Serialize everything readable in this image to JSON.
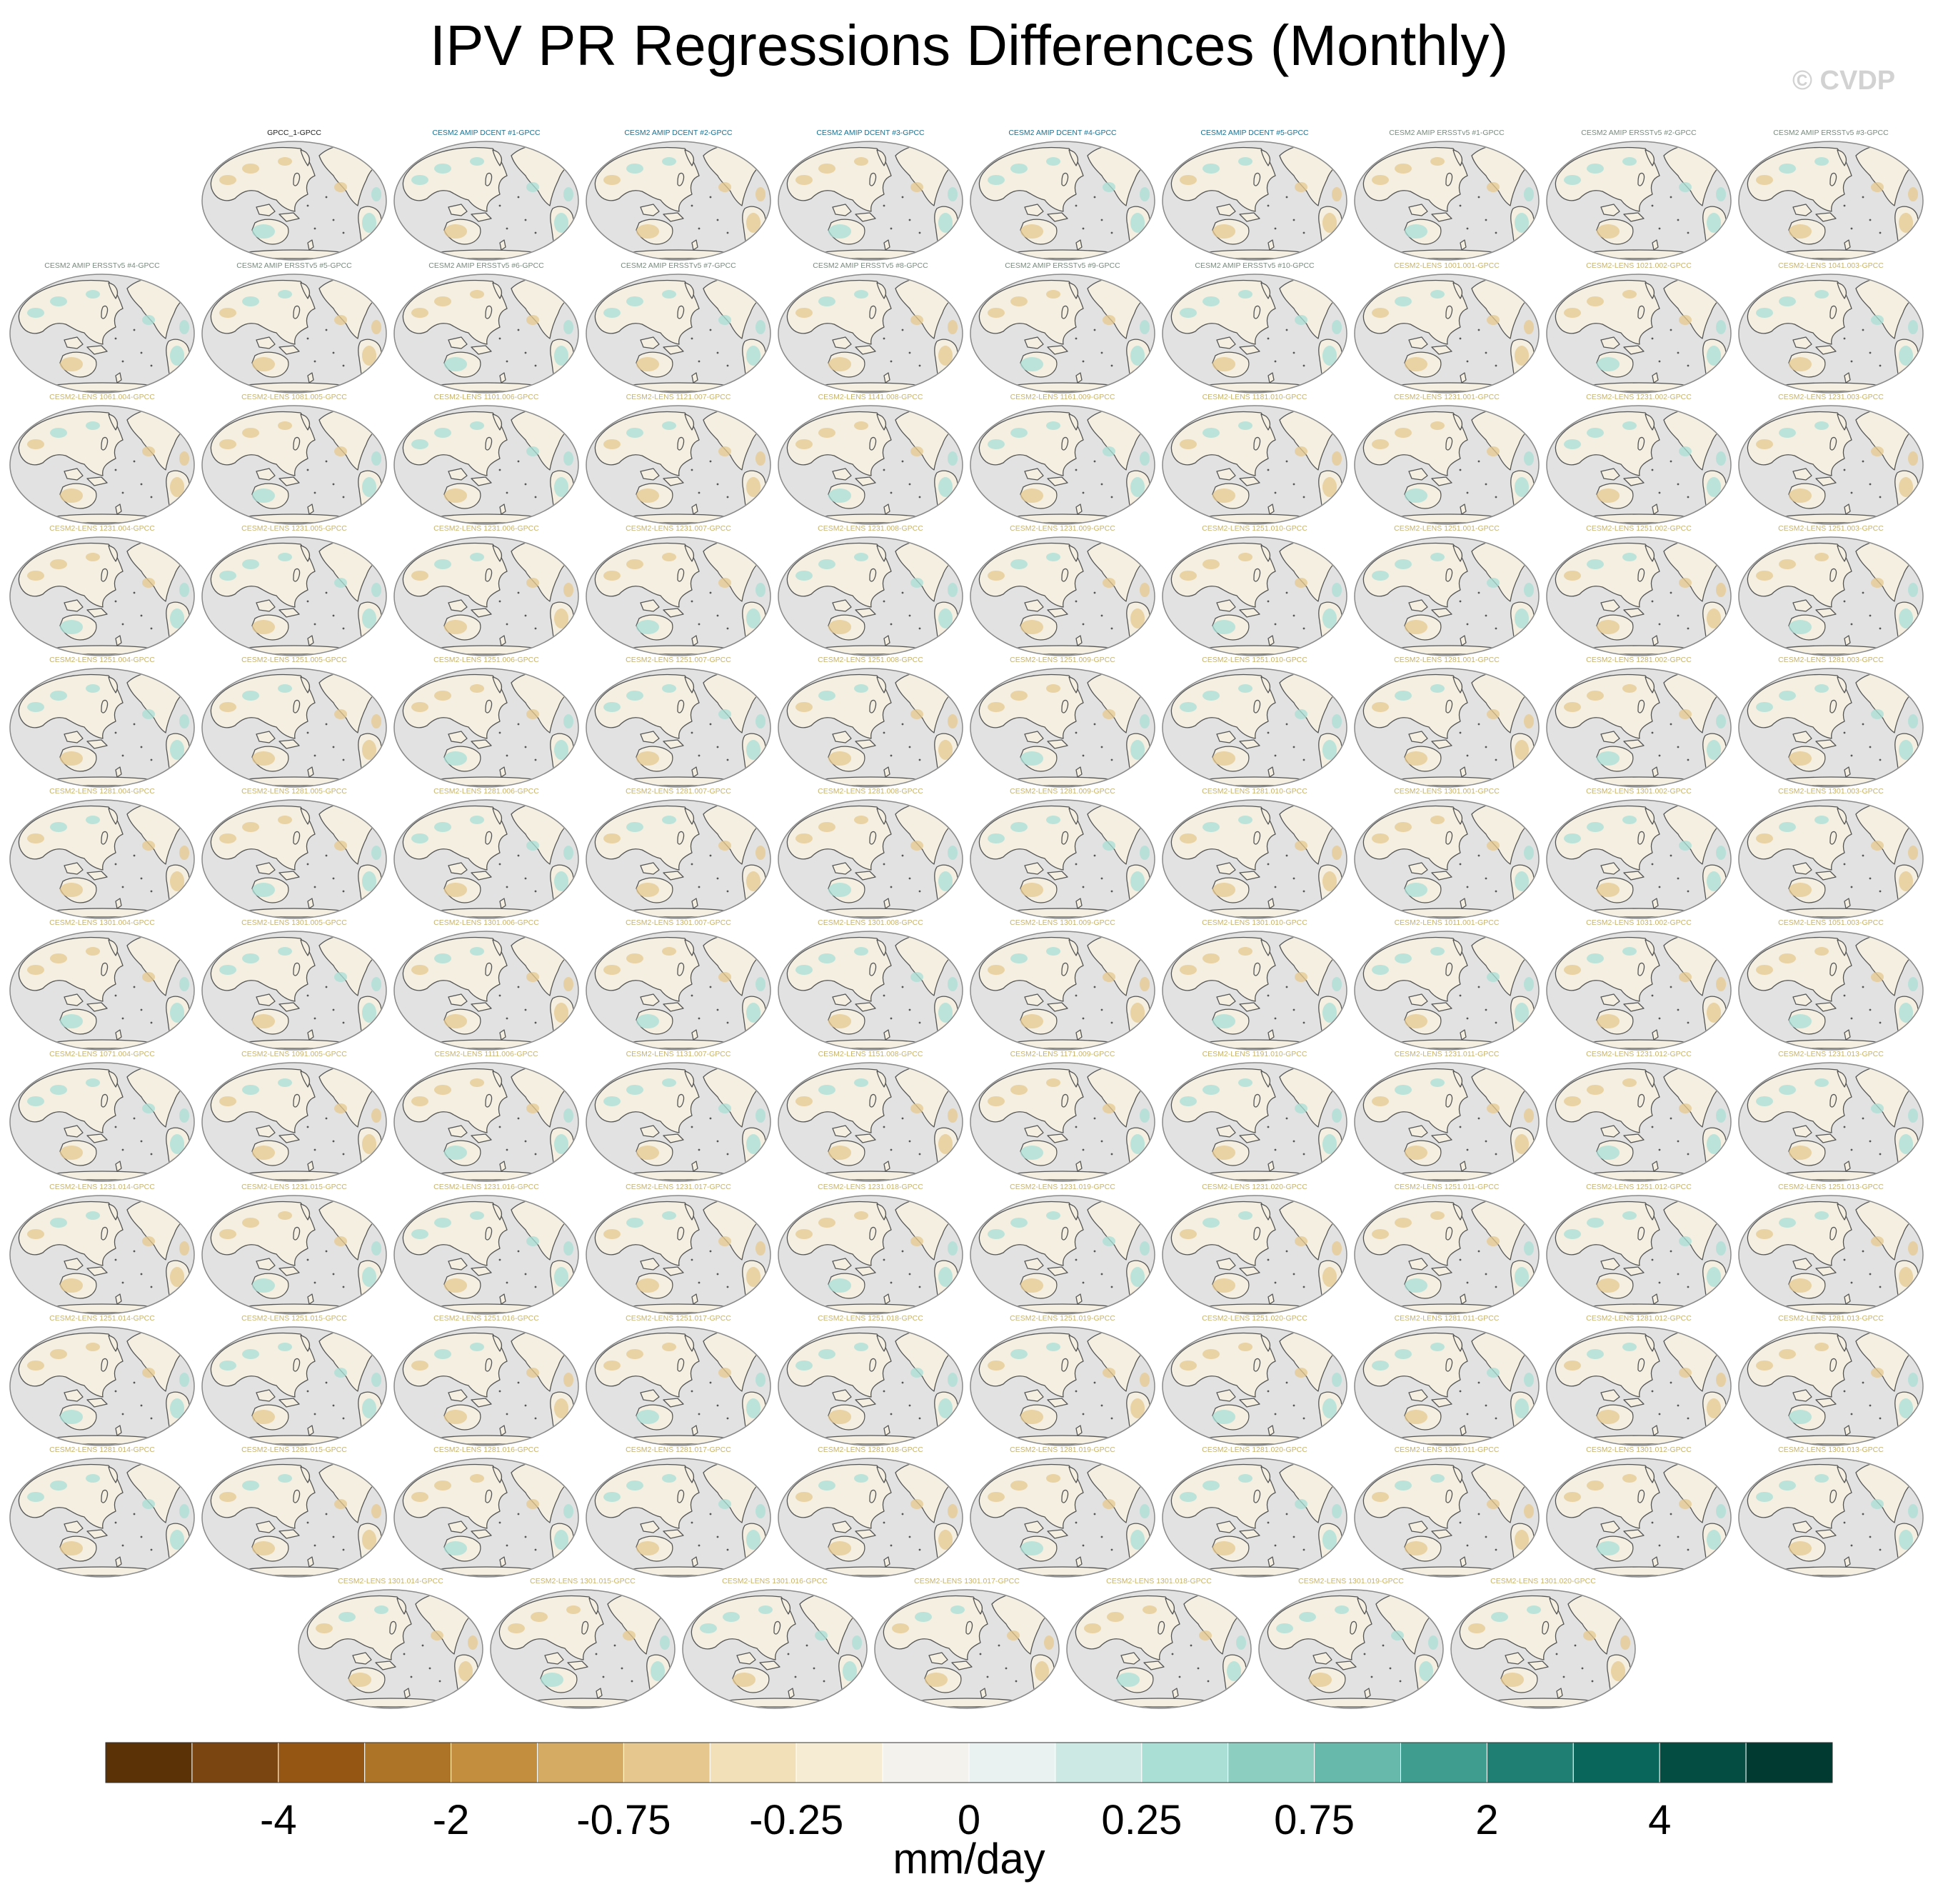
{
  "chart_data": {
    "type": "map-grid",
    "title": "IPV PR Regressions Differences (Monthly)",
    "watermark": "© CVDP",
    "colorbar": {
      "label": "mm/day",
      "tick_labels": [
        "-4",
        "-2",
        "-0.75",
        "-0.25",
        "0",
        "0.25",
        "0.75",
        "2",
        "4"
      ],
      "colors": [
        "#5a3206",
        "#7b4511",
        "#955613",
        "#ad7427",
        "#c38e3e",
        "#d5ab63",
        "#e6c88e",
        "#f2e0b8",
        "#f6ecd4",
        "#f4f2ec",
        "#eaf2f1",
        "#cde9e4",
        "#aadfd5",
        "#8ccfc1",
        "#66b9ab",
        "#3f9d8f",
        "#1f7f72",
        "#08665a",
        "#034d42",
        "#003a30"
      ]
    },
    "panel_title_colors": {
      "obs": "#222222",
      "dcent": "#1f6f8f",
      "erss": "#7a8a7f",
      "lens": "#c7b36e"
    },
    "map_colors": {
      "ocean": "#e2e2e2",
      "land": "#f4efe1",
      "coast": "#555555",
      "dry": "#e6c88e",
      "wet": "#aadfd5"
    },
    "panels": [
      [
        {
          "title": "GPCC_1-GPCC",
          "group": "obs"
        },
        {
          "title": "CESM2 AMIP DCENT #1-GPCC",
          "group": "dcent"
        },
        {
          "title": "CESM2 AMIP DCENT #2-GPCC",
          "group": "dcent"
        },
        {
          "title": "CESM2 AMIP DCENT #3-GPCC",
          "group": "dcent"
        },
        {
          "title": "CESM2 AMIP DCENT #4-GPCC",
          "group": "dcent"
        },
        {
          "title": "CESM2 AMIP DCENT #5-GPCC",
          "group": "dcent"
        },
        {
          "title": "CESM2 AMIP ERSSTv5 #1-GPCC",
          "group": "erss"
        },
        {
          "title": "CESM2 AMIP ERSSTv5 #2-GPCC",
          "group": "erss"
        },
        {
          "title": "CESM2 AMIP ERSSTv5 #3-GPCC",
          "group": "erss"
        }
      ],
      [
        {
          "title": "CESM2 AMIP ERSSTv5 #4-GPCC",
          "group": "erss"
        },
        {
          "title": "CESM2 AMIP ERSSTv5 #5-GPCC",
          "group": "erss"
        },
        {
          "title": "CESM2 AMIP ERSSTv5 #6-GPCC",
          "group": "erss"
        },
        {
          "title": "CESM2 AMIP ERSSTv5 #7-GPCC",
          "group": "erss"
        },
        {
          "title": "CESM2 AMIP ERSSTv5 #8-GPCC",
          "group": "erss"
        },
        {
          "title": "CESM2 AMIP ERSSTv5 #9-GPCC",
          "group": "erss"
        },
        {
          "title": "CESM2 AMIP ERSSTv5 #10-GPCC",
          "group": "erss"
        },
        {
          "title": "CESM2-LENS 1001.001-GPCC",
          "group": "lens"
        },
        {
          "title": "CESM2-LENS 1021.002-GPCC",
          "group": "lens"
        },
        {
          "title": "CESM2-LENS 1041.003-GPCC",
          "group": "lens"
        }
      ],
      [
        {
          "title": "CESM2-LENS 1061.004-GPCC",
          "group": "lens"
        },
        {
          "title": "CESM2-LENS 1081.005-GPCC",
          "group": "lens"
        },
        {
          "title": "CESM2-LENS 1101.006-GPCC",
          "group": "lens"
        },
        {
          "title": "CESM2-LENS 1121.007-GPCC",
          "group": "lens"
        },
        {
          "title": "CESM2-LENS 1141.008-GPCC",
          "group": "lens"
        },
        {
          "title": "CESM2-LENS 1161.009-GPCC",
          "group": "lens"
        },
        {
          "title": "CESM2-LENS 1181.010-GPCC",
          "group": "lens"
        },
        {
          "title": "CESM2-LENS 1231.001-GPCC",
          "group": "lens"
        },
        {
          "title": "CESM2-LENS 1231.002-GPCC",
          "group": "lens"
        },
        {
          "title": "CESM2-LENS 1231.003-GPCC",
          "group": "lens"
        }
      ],
      [
        {
          "title": "CESM2-LENS 1231.004-GPCC",
          "group": "lens"
        },
        {
          "title": "CESM2-LENS 1231.005-GPCC",
          "group": "lens"
        },
        {
          "title": "CESM2-LENS 1231.006-GPCC",
          "group": "lens"
        },
        {
          "title": "CESM2-LENS 1231.007-GPCC",
          "group": "lens"
        },
        {
          "title": "CESM2-LENS 1231.008-GPCC",
          "group": "lens"
        },
        {
          "title": "CESM2-LENS 1231.009-GPCC",
          "group": "lens"
        },
        {
          "title": "CESM2-LENS 1251.010-GPCC",
          "group": "lens"
        },
        {
          "title": "CESM2-LENS 1251.001-GPCC",
          "group": "lens"
        },
        {
          "title": "CESM2-LENS 1251.002-GPCC",
          "group": "lens"
        },
        {
          "title": "CESM2-LENS 1251.003-GPCC",
          "group": "lens"
        }
      ],
      [
        {
          "title": "CESM2-LENS 1251.004-GPCC",
          "group": "lens"
        },
        {
          "title": "CESM2-LENS 1251.005-GPCC",
          "group": "lens"
        },
        {
          "title": "CESM2-LENS 1251.006-GPCC",
          "group": "lens"
        },
        {
          "title": "CESM2-LENS 1251.007-GPCC",
          "group": "lens"
        },
        {
          "title": "CESM2-LENS 1251.008-GPCC",
          "group": "lens"
        },
        {
          "title": "CESM2-LENS 1251.009-GPCC",
          "group": "lens"
        },
        {
          "title": "CESM2-LENS 1251.010-GPCC",
          "group": "lens"
        },
        {
          "title": "CESM2-LENS 1281.001-GPCC",
          "group": "lens"
        },
        {
          "title": "CESM2-LENS 1281.002-GPCC",
          "group": "lens"
        },
        {
          "title": "CESM2-LENS 1281.003-GPCC",
          "group": "lens"
        }
      ],
      [
        {
          "title": "CESM2-LENS 1281.004-GPCC",
          "group": "lens"
        },
        {
          "title": "CESM2-LENS 1281.005-GPCC",
          "group": "lens"
        },
        {
          "title": "CESM2-LENS 1281.006-GPCC",
          "group": "lens"
        },
        {
          "title": "CESM2-LENS 1281.007-GPCC",
          "group": "lens"
        },
        {
          "title": "CESM2-LENS 1281.008-GPCC",
          "group": "lens"
        },
        {
          "title": "CESM2-LENS 1281.009-GPCC",
          "group": "lens"
        },
        {
          "title": "CESM2-LENS 1281.010-GPCC",
          "group": "lens"
        },
        {
          "title": "CESM2-LENS 1301.001-GPCC",
          "group": "lens"
        },
        {
          "title": "CESM2-LENS 1301.002-GPCC",
          "group": "lens"
        },
        {
          "title": "CESM2-LENS 1301.003-GPCC",
          "group": "lens"
        }
      ],
      [
        {
          "title": "CESM2-LENS 1301.004-GPCC",
          "group": "lens"
        },
        {
          "title": "CESM2-LENS 1301.005-GPCC",
          "group": "lens"
        },
        {
          "title": "CESM2-LENS 1301.006-GPCC",
          "group": "lens"
        },
        {
          "title": "CESM2-LENS 1301.007-GPCC",
          "group": "lens"
        },
        {
          "title": "CESM2-LENS 1301.008-GPCC",
          "group": "lens"
        },
        {
          "title": "CESM2-LENS 1301.009-GPCC",
          "group": "lens"
        },
        {
          "title": "CESM2-LENS 1301.010-GPCC",
          "group": "lens"
        },
        {
          "title": "CESM2-LENS 1011.001-GPCC",
          "group": "lens"
        },
        {
          "title": "CESM2-LENS 1031.002-GPCC",
          "group": "lens"
        },
        {
          "title": "CESM2-LENS 1051.003-GPCC",
          "group": "lens"
        }
      ],
      [
        {
          "title": "CESM2-LENS 1071.004-GPCC",
          "group": "lens"
        },
        {
          "title": "CESM2-LENS 1091.005-GPCC",
          "group": "lens"
        },
        {
          "title": "CESM2-LENS 1111.006-GPCC",
          "group": "lens"
        },
        {
          "title": "CESM2-LENS 1131.007-GPCC",
          "group": "lens"
        },
        {
          "title": "CESM2-LENS 1151.008-GPCC",
          "group": "lens"
        },
        {
          "title": "CESM2-LENS 1171.009-GPCC",
          "group": "lens"
        },
        {
          "title": "CESM2-LENS 1191.010-GPCC",
          "group": "lens"
        },
        {
          "title": "CESM2-LENS 1231.011-GPCC",
          "group": "lens"
        },
        {
          "title": "CESM2-LENS 1231.012-GPCC",
          "group": "lens"
        },
        {
          "title": "CESM2-LENS 1231.013-GPCC",
          "group": "lens"
        }
      ],
      [
        {
          "title": "CESM2-LENS 1231.014-GPCC",
          "group": "lens"
        },
        {
          "title": "CESM2-LENS 1231.015-GPCC",
          "group": "lens"
        },
        {
          "title": "CESM2-LENS 1231.016-GPCC",
          "group": "lens"
        },
        {
          "title": "CESM2-LENS 1231.017-GPCC",
          "group": "lens"
        },
        {
          "title": "CESM2-LENS 1231.018-GPCC",
          "group": "lens"
        },
        {
          "title": "CESM2-LENS 1231.019-GPCC",
          "group": "lens"
        },
        {
          "title": "CESM2-LENS 1231.020-GPCC",
          "group": "lens"
        },
        {
          "title": "CESM2-LENS 1251.011-GPCC",
          "group": "lens"
        },
        {
          "title": "CESM2-LENS 1251.012-GPCC",
          "group": "lens"
        },
        {
          "title": "CESM2-LENS 1251.013-GPCC",
          "group": "lens"
        }
      ],
      [
        {
          "title": "CESM2-LENS 1251.014-GPCC",
          "group": "lens"
        },
        {
          "title": "CESM2-LENS 1251.015-GPCC",
          "group": "lens"
        },
        {
          "title": "CESM2-LENS 1251.016-GPCC",
          "group": "lens"
        },
        {
          "title": "CESM2-LENS 1251.017-GPCC",
          "group": "lens"
        },
        {
          "title": "CESM2-LENS 1251.018-GPCC",
          "group": "lens"
        },
        {
          "title": "CESM2-LENS 1251.019-GPCC",
          "group": "lens"
        },
        {
          "title": "CESM2-LENS 1251.020-GPCC",
          "group": "lens"
        },
        {
          "title": "CESM2-LENS 1281.011-GPCC",
          "group": "lens"
        },
        {
          "title": "CESM2-LENS 1281.012-GPCC",
          "group": "lens"
        },
        {
          "title": "CESM2-LENS 1281.013-GPCC",
          "group": "lens"
        }
      ],
      [
        {
          "title": "CESM2-LENS 1281.014-GPCC",
          "group": "lens"
        },
        {
          "title": "CESM2-LENS 1281.015-GPCC",
          "group": "lens"
        },
        {
          "title": "CESM2-LENS 1281.016-GPCC",
          "group": "lens"
        },
        {
          "title": "CESM2-LENS 1281.017-GPCC",
          "group": "lens"
        },
        {
          "title": "CESM2-LENS 1281.018-GPCC",
          "group": "lens"
        },
        {
          "title": "CESM2-LENS 1281.019-GPCC",
          "group": "lens"
        },
        {
          "title": "CESM2-LENS 1281.020-GPCC",
          "group": "lens"
        },
        {
          "title": "CESM2-LENS 1301.011-GPCC",
          "group": "lens"
        },
        {
          "title": "CESM2-LENS 1301.012-GPCC",
          "group": "lens"
        },
        {
          "title": "CESM2-LENS 1301.013-GPCC",
          "group": "lens"
        }
      ],
      [
        {
          "title": "CESM2-LENS 1301.014-GPCC",
          "group": "lens"
        },
        {
          "title": "CESM2-LENS 1301.015-GPCC",
          "group": "lens"
        },
        {
          "title": "CESM2-LENS 1301.016-GPCC",
          "group": "lens"
        },
        {
          "title": "CESM2-LENS 1301.017-GPCC",
          "group": "lens"
        },
        {
          "title": "CESM2-LENS 1301.018-GPCC",
          "group": "lens"
        },
        {
          "title": "CESM2-LENS 1301.019-GPCC",
          "group": "lens"
        },
        {
          "title": "CESM2-LENS 1301.020-GPCC",
          "group": "lens"
        }
      ]
    ]
  }
}
